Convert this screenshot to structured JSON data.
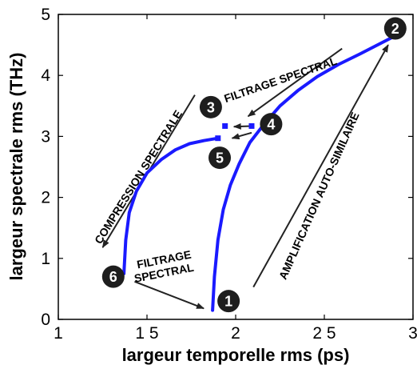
{
  "chart_data": {
    "type": "line",
    "title": "",
    "xlabel": "largeur temporelle rms (ps)",
    "ylabel": "largeur spectrale rms (THz)",
    "xlim": [
      1,
      3
    ],
    "ylim": [
      0,
      5
    ],
    "xticks": [
      1,
      1.5,
      2,
      2.5,
      3
    ],
    "xtick_labels": [
      "1",
      "1 5",
      "2",
      "2 5",
      "3"
    ],
    "yticks": [
      0,
      1,
      2,
      3,
      4,
      5
    ],
    "ytick_labels": [
      "0",
      "1",
      "2",
      "3",
      "4",
      "5"
    ],
    "grid": false,
    "line_color": "#1a1aff",
    "series": [
      {
        "x": [
          1.87,
          1.88,
          1.9,
          1.93,
          1.97,
          2.02,
          2.08,
          2.16,
          2.25,
          2.35,
          2.46,
          2.58,
          2.7,
          2.8,
          2.88
        ],
        "y": [
          0.15,
          0.7,
          1.3,
          1.8,
          2.2,
          2.55,
          2.9,
          3.2,
          3.5,
          3.75,
          3.98,
          4.18,
          4.35,
          4.5,
          4.62
        ]
      },
      {
        "x": [
          1.37,
          1.38,
          1.4,
          1.44,
          1.5,
          1.58,
          1.66,
          1.74,
          1.82,
          1.9
        ],
        "y": [
          0.75,
          1.3,
          1.75,
          2.1,
          2.4,
          2.62,
          2.78,
          2.88,
          2.93,
          2.97
        ]
      }
    ],
    "points": [
      {
        "x": 1.9,
        "y": 2.97
      },
      {
        "x": 1.94,
        "y": 3.17
      },
      {
        "x": 2.09,
        "y": 3.17
      }
    ],
    "markers": [
      {
        "label": "1",
        "x": 1.96,
        "y": 0.3
      },
      {
        "label": "2",
        "x": 2.9,
        "y": 4.77
      },
      {
        "label": "3",
        "x": 1.86,
        "y": 3.48
      },
      {
        "label": "4",
        "x": 2.2,
        "y": 3.2
      },
      {
        "label": "5",
        "x": 1.91,
        "y": 2.65
      },
      {
        "label": "6",
        "x": 1.31,
        "y": 0.7
      }
    ],
    "arrows": [
      {
        "from": [
          2.6,
          4.44
        ],
        "to": [
          2.07,
          3.33
        ]
      },
      {
        "from": [
          2.1,
          0.53
        ],
        "to": [
          2.86,
          4.5
        ]
      },
      {
        "from": [
          1.77,
          3.68
        ],
        "to": [
          1.25,
          1.18
        ]
      },
      {
        "from": [
          1.43,
          0.62
        ],
        "to": [
          1.82,
          0.18
        ]
      },
      {
        "from": [
          2.09,
          3.17
        ],
        "to": [
          1.99,
          3.16
        ]
      },
      {
        "from": [
          2.09,
          3.06
        ],
        "to": [
          1.98,
          2.97
        ]
      }
    ],
    "annotations": [
      {
        "text": "FILTRAGE SPECTRAL",
        "x": 2.26,
        "y": 3.87,
        "rotate": -19
      },
      {
        "text": "AMPLIFICATION AUTO-SIMILAIRE",
        "x": 2.49,
        "y": 2.0,
        "rotate": -66
      },
      {
        "text": "COMPRESSION SPECTRALE",
        "x": 1.47,
        "y": 2.3,
        "rotate": -58
      },
      {
        "text": "FILTRAGE",
        "x": 1.6,
        "y": 0.92,
        "rotate": -11
      },
      {
        "text": "SPECTRAL",
        "x": 1.6,
        "y": 0.7,
        "rotate": -11
      }
    ]
  }
}
